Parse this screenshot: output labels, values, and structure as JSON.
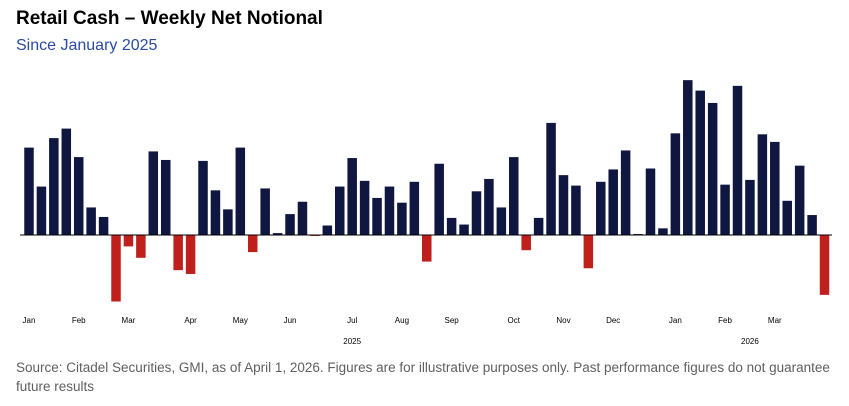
{
  "title": "Retail Cash – Weekly Net Notional",
  "subtitle": "Since January 2025",
  "source": "Source: Citadel Securities, GMI, as of April 1, 2026. Figures are for illustrative purposes only. Past performance figures do not guarantee future results",
  "colors": {
    "positive": "#0f1640",
    "negative": "#c0201b",
    "axis": "#000000",
    "text": "#000000"
  },
  "chart_data": {
    "type": "bar",
    "title": "Retail Cash – Weekly Net Notional",
    "subtitle": "Since January 2025",
    "xlabel": "",
    "ylabel": "",
    "grid": false,
    "legend": "none",
    "ylim": [
      -70,
      160
    ],
    "month_labels": [
      "Jan",
      "Feb",
      "Mar",
      "Apr",
      "May",
      "Jun",
      "Jul",
      "Aug",
      "Sep",
      "Oct",
      "Nov",
      "Dec",
      "Jan",
      "Feb",
      "Mar"
    ],
    "month_label_week_index": [
      0,
      4,
      8,
      13,
      17,
      21,
      26,
      30,
      34,
      39,
      43,
      47,
      52,
      56,
      60
    ],
    "year_labels": [
      {
        "label": "2025",
        "week_index": 26
      },
      {
        "label": "2026",
        "week_index": 58
      }
    ],
    "week_index": [
      0,
      1,
      2,
      3,
      4,
      5,
      6,
      7,
      8,
      9,
      10,
      11,
      12,
      13,
      14,
      15,
      16,
      17,
      18,
      19,
      20,
      21,
      22,
      23,
      24,
      25,
      26,
      27,
      28,
      29,
      30,
      31,
      32,
      33,
      34,
      35,
      36,
      37,
      38,
      39,
      40,
      41,
      42,
      43,
      44,
      45,
      46,
      47,
      48,
      49,
      50,
      51,
      52,
      53,
      54,
      55,
      56,
      57,
      58,
      59,
      60,
      61,
      62,
      63,
      64
    ],
    "values": [
      92,
      51,
      102,
      112,
      82,
      29,
      19,
      -70,
      -12,
      -24,
      88,
      79,
      -37,
      -41,
      78,
      47,
      27,
      92,
      -18,
      49,
      2,
      22,
      35,
      -1,
      10,
      51,
      81,
      57,
      39,
      51,
      34,
      56,
      -28,
      75,
      18,
      11,
      46,
      59,
      29,
      82,
      -16,
      18,
      118,
      63,
      52,
      -35,
      56,
      69,
      89,
      1,
      70,
      7,
      107,
      163,
      152,
      139,
      53,
      157,
      58,
      106,
      98,
      36,
      73,
      21,
      -63
    ]
  }
}
